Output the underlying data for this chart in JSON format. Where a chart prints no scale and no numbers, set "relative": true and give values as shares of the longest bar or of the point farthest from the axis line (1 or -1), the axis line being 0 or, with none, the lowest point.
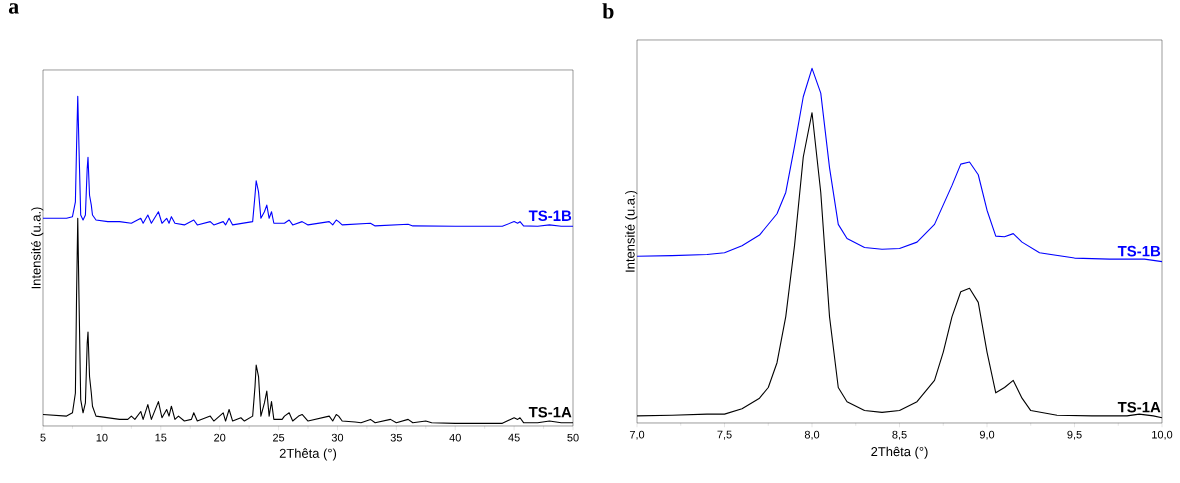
{
  "chart_data": [
    {
      "type": "line",
      "title": "a",
      "xlabel": "2Thêta (°)",
      "ylabel": "Intensité (u.a.)",
      "relative": true,
      "xlim": [
        5,
        50
      ],
      "xticks": [
        5,
        10,
        15,
        20,
        25,
        30,
        35,
        40,
        45,
        50
      ],
      "grid": false,
      "series": [
        {
          "name": "TS-1A",
          "color": "#000000",
          "x": [
            5,
            7.0,
            7.5,
            7.75,
            7.85,
            7.95,
            8.05,
            8.2,
            8.4,
            8.6,
            8.75,
            8.82,
            8.95,
            9.1,
            9.2,
            9.5,
            10.5,
            11.5,
            12.2,
            12.5,
            12.8,
            13.3,
            13.5,
            13.9,
            14.2,
            14.8,
            15.1,
            15.5,
            15.7,
            15.9,
            16.2,
            16.5,
            17.0,
            17.6,
            17.8,
            18.1,
            19.2,
            19.5,
            20.3,
            20.5,
            20.8,
            21.1,
            21.8,
            22.1,
            22.8,
            23.0,
            23.1,
            23.3,
            23.5,
            23.8,
            24.0,
            24.2,
            24.4,
            24.6,
            25.3,
            25.5,
            25.9,
            26.2,
            26.7,
            27.0,
            27.5,
            29.3,
            29.6,
            29.9,
            30.1,
            30.4,
            31.5,
            32.0,
            32.8,
            33.2,
            34.5,
            35.0,
            36.0,
            36.4,
            37.5,
            38,
            40,
            44,
            45.0,
            45.3,
            45.5,
            45.8,
            47,
            48,
            49,
            50
          ],
          "values": [
            0.035,
            0.03,
            0.04,
            0.1,
            0.4,
            0.63,
            0.4,
            0.08,
            0.04,
            0.07,
            0.25,
            0.285,
            0.15,
            0.1,
            0.06,
            0.03,
            0.025,
            0.02,
            0.02,
            0.03,
            0.02,
            0.044,
            0.02,
            0.065,
            0.02,
            0.074,
            0.025,
            0.05,
            0.03,
            0.06,
            0.02,
            0.03,
            0.015,
            0.02,
            0.04,
            0.015,
            0.03,
            0.015,
            0.04,
            0.015,
            0.05,
            0.015,
            0.025,
            0.015,
            0.03,
            0.12,
            0.185,
            0.15,
            0.03,
            0.07,
            0.106,
            0.03,
            0.074,
            0.02,
            0.02,
            0.03,
            0.04,
            0.015,
            0.03,
            0.035,
            0.015,
            0.03,
            0.015,
            0.035,
            0.03,
            0.015,
            0.012,
            0.01,
            0.02,
            0.01,
            0.02,
            0.01,
            0.02,
            0.01,
            0.015,
            0.01,
            0.008,
            0.008,
            0.025,
            0.02,
            0.025,
            0.01,
            0.01,
            0.015,
            0.01,
            0.01
          ]
        },
        {
          "name": "TS-1B",
          "color": "#0000ff",
          "x": [
            5,
            7.0,
            7.5,
            7.75,
            7.85,
            7.95,
            8.05,
            8.2,
            8.4,
            8.6,
            8.75,
            8.82,
            8.95,
            9.1,
            9.2,
            9.5,
            10.5,
            11.5,
            12.5,
            13.3,
            13.5,
            13.9,
            14.2,
            14.8,
            15.1,
            15.5,
            15.7,
            15.9,
            16.2,
            17.0,
            17.8,
            18.1,
            19.2,
            19.5,
            20.3,
            20.5,
            20.8,
            21.1,
            22.8,
            23.0,
            23.1,
            23.3,
            23.5,
            23.8,
            24.0,
            24.2,
            24.4,
            24.6,
            25.5,
            25.9,
            26.2,
            27.0,
            27.5,
            29.3,
            29.6,
            29.9,
            30.1,
            30.4,
            32.8,
            33.2,
            36.0,
            36.4,
            40,
            44,
            45.0,
            45.3,
            45.5,
            45.8,
            47,
            48,
            49,
            50
          ],
          "values": [
            0.63,
            0.63,
            0.635,
            0.68,
            0.85,
            1.0,
            0.85,
            0.64,
            0.625,
            0.64,
            0.78,
            0.815,
            0.7,
            0.67,
            0.64,
            0.625,
            0.62,
            0.62,
            0.615,
            0.63,
            0.615,
            0.64,
            0.615,
            0.65,
            0.615,
            0.63,
            0.615,
            0.635,
            0.615,
            0.61,
            0.625,
            0.61,
            0.62,
            0.61,
            0.62,
            0.61,
            0.63,
            0.61,
            0.62,
            0.7,
            0.744,
            0.71,
            0.63,
            0.65,
            0.67,
            0.63,
            0.65,
            0.615,
            0.615,
            0.625,
            0.61,
            0.62,
            0.61,
            0.62,
            0.61,
            0.625,
            0.62,
            0.61,
            0.615,
            0.607,
            0.612,
            0.607,
            0.606,
            0.606,
            0.62,
            0.615,
            0.62,
            0.607,
            0.606,
            0.61,
            0.606,
            0.606
          ]
        }
      ]
    },
    {
      "type": "line",
      "title": "b",
      "xlabel": "2Thêta (°)",
      "ylabel": "Intensité (u.a.)",
      "relative": true,
      "xlim": [
        7,
        10
      ],
      "xticks": [
        {
          "value": 7,
          "label": "7,0"
        },
        {
          "value": 7.5,
          "label": "7,5"
        },
        {
          "value": 8,
          "label": "8,0"
        },
        {
          "value": 8.5,
          "label": "8,5"
        },
        {
          "value": 9,
          "label": "9,0"
        },
        {
          "value": 9.5,
          "label": "9,5"
        },
        {
          "value": 10,
          "label": "10,0"
        }
      ],
      "grid": false,
      "series": [
        {
          "name": "TS-1A",
          "color": "#000000",
          "x": [
            7.0,
            7.2,
            7.4,
            7.5,
            7.6,
            7.7,
            7.75,
            7.8,
            7.85,
            7.9,
            7.95,
            8.0,
            8.05,
            8.1,
            8.15,
            8.2,
            8.3,
            8.4,
            8.5,
            8.6,
            8.7,
            8.75,
            8.8,
            8.85,
            8.9,
            8.95,
            9.0,
            9.05,
            9.1,
            9.15,
            9.2,
            9.25,
            9.4,
            9.6,
            9.8,
            9.87,
            9.95,
            10.0
          ],
          "values": [
            0.02,
            0.022,
            0.025,
            0.025,
            0.04,
            0.07,
            0.1,
            0.17,
            0.3,
            0.5,
            0.75,
            0.875,
            0.65,
            0.3,
            0.1,
            0.06,
            0.035,
            0.03,
            0.035,
            0.06,
            0.12,
            0.2,
            0.3,
            0.37,
            0.38,
            0.34,
            0.2,
            0.085,
            0.1,
            0.12,
            0.07,
            0.035,
            0.022,
            0.02,
            0.02,
            0.025,
            0.02,
            0.015
          ]
        },
        {
          "name": "TS-1B",
          "color": "#0000ff",
          "x": [
            7.0,
            7.2,
            7.4,
            7.5,
            7.6,
            7.7,
            7.8,
            7.85,
            7.9,
            7.95,
            8.0,
            8.05,
            8.1,
            8.15,
            8.2,
            8.3,
            8.4,
            8.5,
            8.6,
            8.7,
            8.8,
            8.85,
            8.9,
            8.95,
            9.0,
            9.05,
            9.1,
            9.15,
            9.2,
            9.3,
            9.5,
            9.7,
            9.9,
            10.0
          ],
          "values": [
            0.47,
            0.472,
            0.475,
            0.48,
            0.5,
            0.53,
            0.59,
            0.65,
            0.78,
            0.92,
            1.0,
            0.93,
            0.72,
            0.56,
            0.52,
            0.495,
            0.49,
            0.492,
            0.51,
            0.56,
            0.67,
            0.73,
            0.736,
            0.7,
            0.6,
            0.527,
            0.525,
            0.534,
            0.51,
            0.48,
            0.465,
            0.462,
            0.462,
            0.455
          ]
        }
      ]
    }
  ]
}
